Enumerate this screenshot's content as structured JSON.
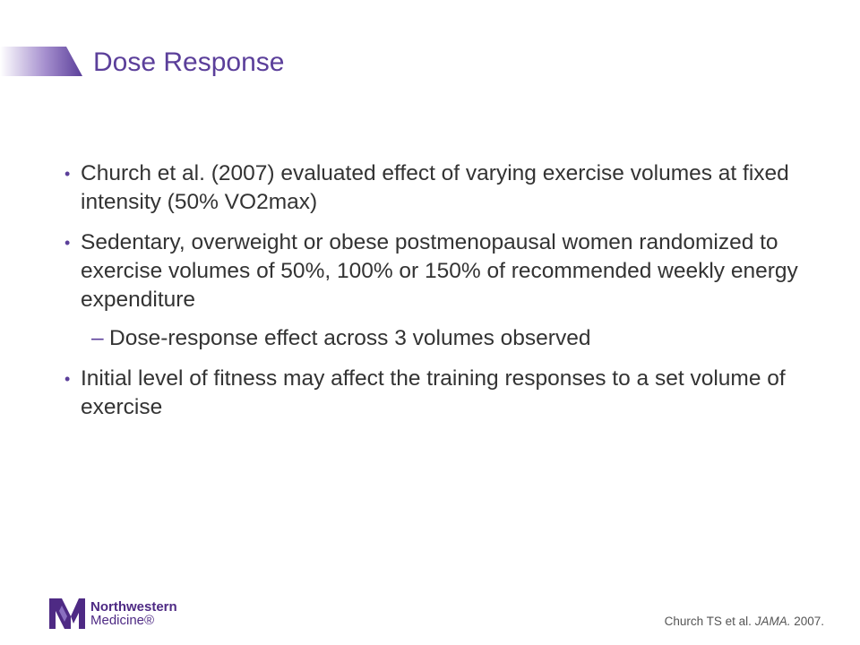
{
  "slide": {
    "title": "Dose Response",
    "accent_color": "#5b3f9a",
    "bullets": [
      "Church et al. (2007) evaluated effect of varying exercise volumes at fixed intensity (50% VO2max)",
      "Sedentary, overweight or obese postmenopausal women randomized to exercise volumes of 50%, 100% or 150% of recommended weekly energy expenditure"
    ],
    "sub_bullet": "Dose-response effect across 3 volumes observed",
    "last_bullet": "Initial level of fitness may affect the training responses to a set volume of exercise",
    "bullet_symbol": "•",
    "dash_symbol": "–"
  },
  "footer": {
    "logo_line1": "Northwestern",
    "logo_line2": "Medicine®",
    "citation_prefix": "Church TS et al. ",
    "citation_journal": "JAMA.",
    "citation_year": " 2007."
  }
}
